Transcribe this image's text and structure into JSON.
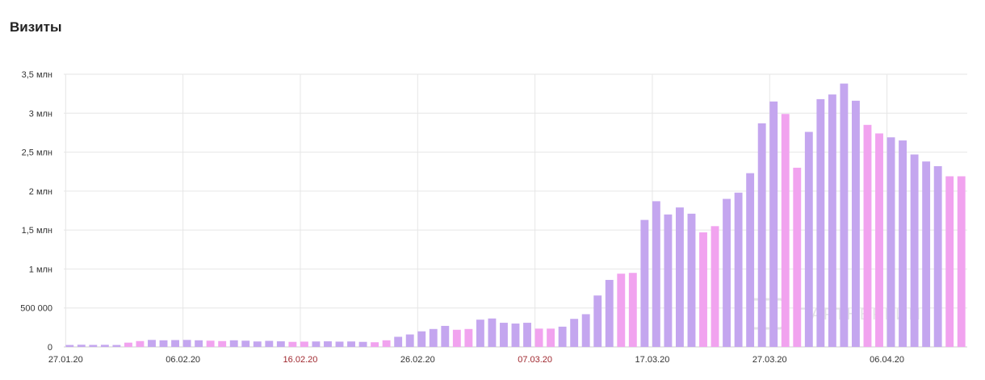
{
  "header": {
    "title": "Визиты"
  },
  "watermark": {
    "text": "ПАРТНЕРКИН"
  },
  "chart_data": {
    "type": "bar",
    "title": "Визиты",
    "xlabel": "",
    "ylabel": "",
    "ylim": [
      0,
      3500000
    ],
    "grid": true,
    "legend": "none",
    "colors": {
      "weekday": "#c4a6ef",
      "weekend": "#f1a3ef",
      "grid": "#e6e6e6"
    },
    "y_ticks": [
      {
        "value": 0,
        "label": "0"
      },
      {
        "value": 500000,
        "label": "500 000"
      },
      {
        "value": 1000000,
        "label": "1 млн"
      },
      {
        "value": 1500000,
        "label": "1,5 млн"
      },
      {
        "value": 2000000,
        "label": "2 млн"
      },
      {
        "value": 2500000,
        "label": "2,5 млн"
      },
      {
        "value": 3000000,
        "label": "3 млн"
      },
      {
        "value": 3500000,
        "label": "3,5 млн"
      }
    ],
    "x_ticks": [
      {
        "index": 0,
        "label": "27.01.20",
        "weekend": false
      },
      {
        "index": 10,
        "label": "06.02.20",
        "weekend": false
      },
      {
        "index": 20,
        "label": "16.02.20",
        "weekend": true
      },
      {
        "index": 30,
        "label": "26.02.20",
        "weekend": false
      },
      {
        "index": 40,
        "label": "07.03.20",
        "weekend": true
      },
      {
        "index": 50,
        "label": "17.03.20",
        "weekend": false
      },
      {
        "index": 60,
        "label": "27.03.20",
        "weekend": false
      },
      {
        "index": 70,
        "label": "06.04.20",
        "weekend": false
      }
    ],
    "start_date": "27.01.20",
    "values": [
      25000,
      28000,
      26000,
      27000,
      25000,
      55000,
      75000,
      90000,
      85000,
      88000,
      90000,
      85000,
      80000,
      75000,
      85000,
      80000,
      70000,
      78000,
      72000,
      65000,
      68000,
      70000,
      72000,
      68000,
      70000,
      65000,
      60000,
      85000,
      130000,
      160000,
      200000,
      230000,
      270000,
      220000,
      230000,
      350000,
      365000,
      310000,
      300000,
      310000,
      235000,
      235000,
      260000,
      360000,
      420000,
      660000,
      860000,
      940000,
      950000,
      1630000,
      1870000,
      1700000,
      1790000,
      1710000,
      1470000,
      1550000,
      1900000,
      1980000,
      2230000,
      2870000,
      3150000,
      2990000,
      2300000,
      2760000,
      3180000,
      3240000,
      3380000,
      3160000,
      2850000,
      2740000,
      2690000,
      2650000,
      2470000,
      2380000,
      2320000,
      2190000,
      2190000
    ],
    "weekend": [
      false,
      false,
      false,
      false,
      false,
      true,
      true,
      false,
      false,
      false,
      false,
      false,
      true,
      true,
      false,
      false,
      false,
      false,
      false,
      true,
      true,
      false,
      false,
      false,
      false,
      false,
      true,
      true,
      false,
      false,
      false,
      false,
      false,
      true,
      true,
      false,
      false,
      false,
      false,
      false,
      true,
      true,
      false,
      false,
      false,
      false,
      false,
      true,
      true,
      false,
      false,
      false,
      false,
      false,
      true,
      true,
      false,
      false,
      false,
      false,
      false,
      true,
      true,
      false,
      false,
      false,
      false,
      false,
      true,
      true,
      false,
      false,
      false,
      false,
      false,
      true,
      true
    ]
  }
}
